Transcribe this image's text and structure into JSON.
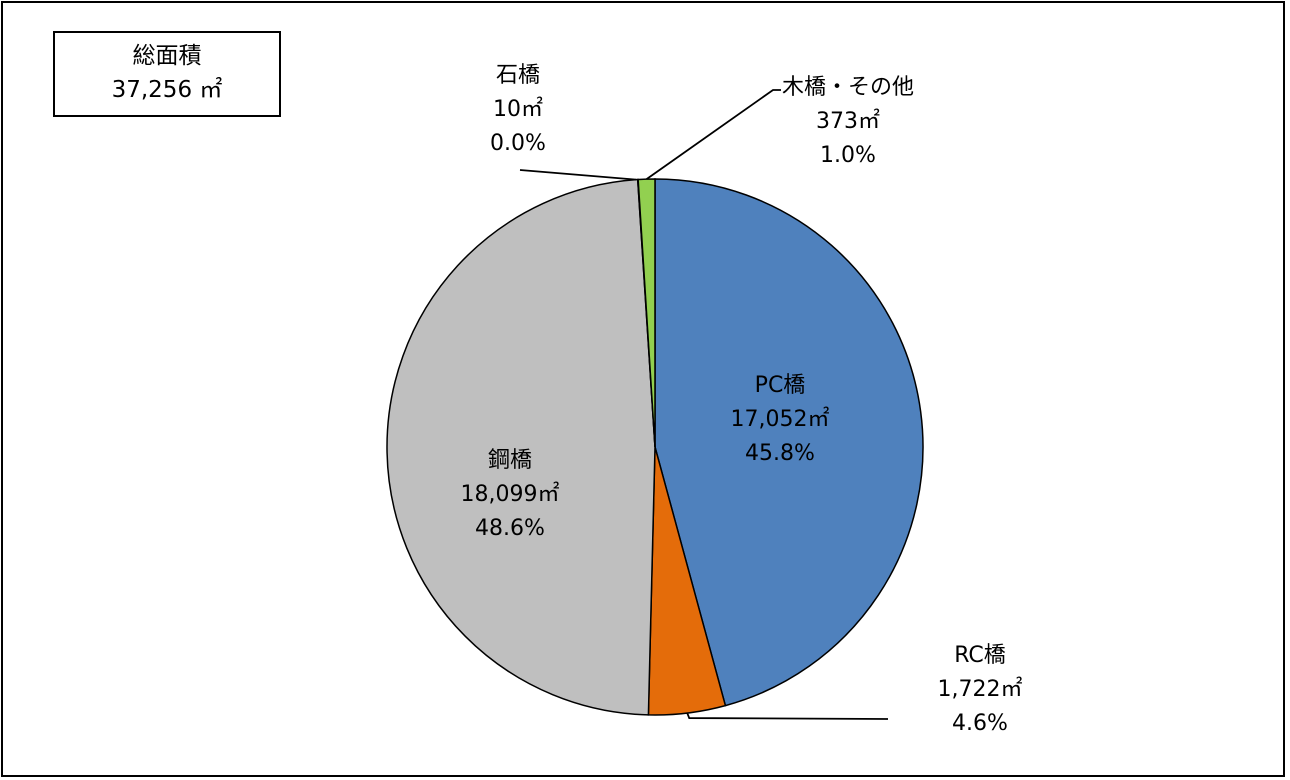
{
  "total": {
    "title": "総面積",
    "value": "37,256 ㎡"
  },
  "chart_data": {
    "type": "pie",
    "title": "",
    "unit": "㎡",
    "start_angle_deg": 0,
    "direction": "clockwise",
    "slices": [
      {
        "label": "PC橋",
        "value": 17052,
        "value_text": "17,052㎡",
        "percent": 45.8,
        "percent_text": "45.8%",
        "color": "#4f81bd"
      },
      {
        "label": "RC橋",
        "value": 1722,
        "value_text": "1,722㎡",
        "percent": 4.6,
        "percent_text": "4.6%",
        "color": "#e46c0a"
      },
      {
        "label": "鋼橋",
        "value": 18099,
        "value_text": "18,099㎡",
        "percent": 48.6,
        "percent_text": "48.6%",
        "color": "#bfbfbf"
      },
      {
        "label": "石橋",
        "value": 10,
        "value_text": "10㎡",
        "percent": 0.0,
        "percent_text": "0.0%",
        "color": "#ffffff"
      },
      {
        "label": "木橋・その他",
        "value": 373,
        "value_text": "373㎡",
        "percent": 1.0,
        "percent_text": "1.0%",
        "color": "#92d050"
      }
    ]
  }
}
